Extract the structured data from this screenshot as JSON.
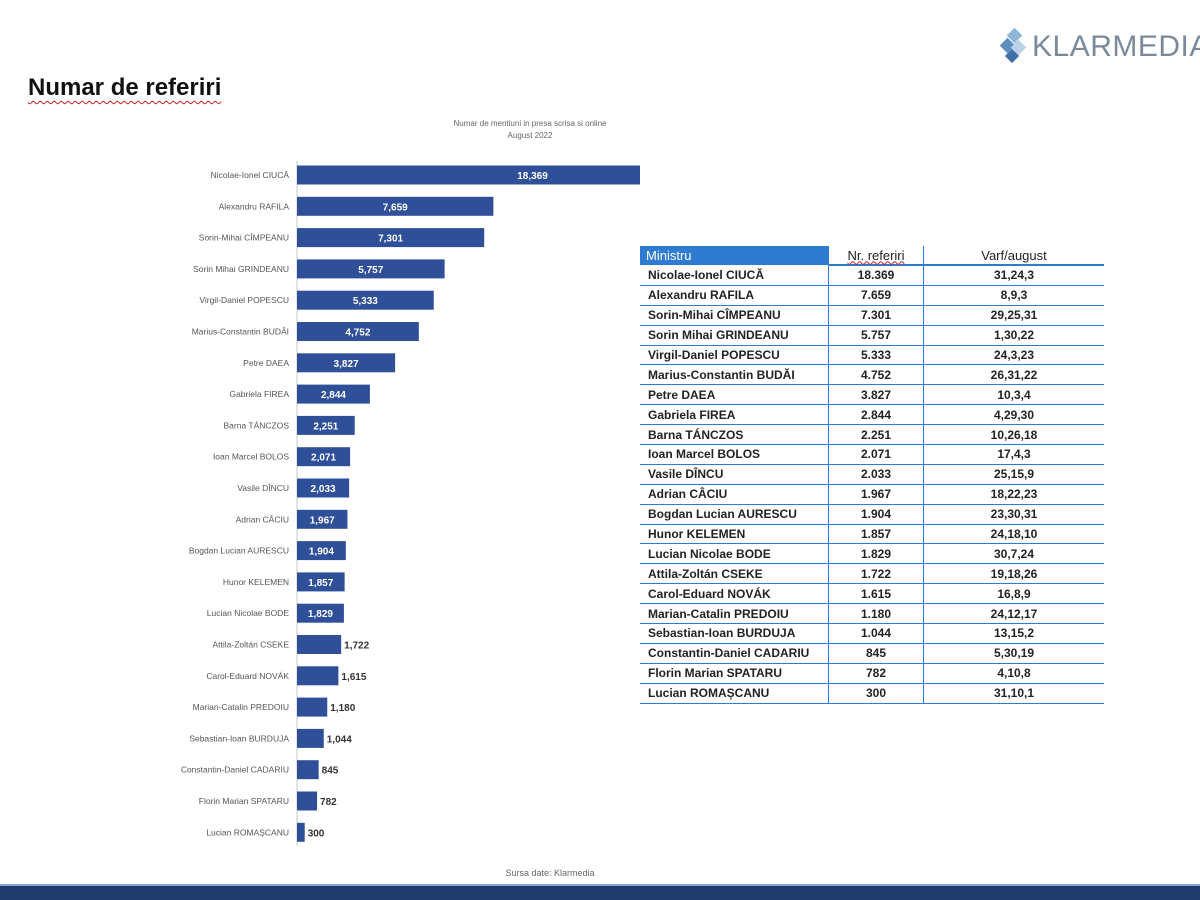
{
  "brand": {
    "name": "KLARMEDIA",
    "accent": "#2e7bd1",
    "bar_color": "#2f4f99",
    "band_color": "#1f3a6b"
  },
  "page": {
    "title": "Numar de referiri",
    "source": "Sursa date: Klarmedia"
  },
  "chart_data": {
    "type": "bar",
    "orientation": "horizontal",
    "title": "Numar de mentiuni in presa scrisa si online",
    "subtitle": "August 2022",
    "xlabel": "",
    "ylabel": "",
    "xlim": [
      0,
      18369
    ],
    "grid": false,
    "categories": [
      "Nicolae-Ionel CIUCĂ",
      "Alexandru RAFILA",
      "Sorin-Mihai CÎMPEANU",
      "Sorin Mihai GRINDEANU",
      "Virgil-Daniel POPESCU",
      "Marius-Constantin BUDĂI",
      "Petre DAEA",
      "Gabriela FIREA",
      "Barna TÁNCZOS",
      "Ioan Marcel BOLOS",
      "Vasile DÎNCU",
      "Adrian CÂCIU",
      "Bogdan Lucian AURESCU",
      "Hunor KELEMEN",
      "Lucian Nicolae BODE",
      "Attila-Zoltán CSEKE",
      "Carol-Eduard NOVÁK",
      "Marian-Catalin PREDOIU",
      "Sebastian-Ioan BURDUJA",
      "Constantin-Daniel CADARIU",
      "Florin Marian SPATARU",
      "Lucian ROMAȘCANU"
    ],
    "values": [
      18369,
      7659,
      7301,
      5757,
      5333,
      4752,
      3827,
      2844,
      2251,
      2071,
      2033,
      1967,
      1904,
      1857,
      1829,
      1722,
      1615,
      1180,
      1044,
      845,
      782,
      300
    ],
    "data_labels": [
      "18,369",
      "7,659",
      "7,301",
      "5,757",
      "5,333",
      "4,752",
      "3,827",
      "2,844",
      "2,251",
      "2,071",
      "2,033",
      "1,967",
      "1,904",
      "1,857",
      "1,829",
      "1,722",
      "1,615",
      "1,180",
      "1,044",
      "845",
      "782",
      "300"
    ]
  },
  "table": {
    "headers": [
      "Ministru",
      "Nr. referiri",
      "Varf/august"
    ],
    "rows": [
      [
        "Nicolae-Ionel CIUCĂ",
        "18.369",
        "31,24,3"
      ],
      [
        "Alexandru RAFILA",
        "7.659",
        "8,9,3"
      ],
      [
        "Sorin-Mihai CÎMPEANU",
        "7.301",
        "29,25,31"
      ],
      [
        "Sorin Mihai GRINDEANU",
        "5.757",
        "1,30,22"
      ],
      [
        "Virgil-Daniel POPESCU",
        "5.333",
        "24,3,23"
      ],
      [
        "Marius-Constantin BUDĂI",
        "4.752",
        "26,31,22"
      ],
      [
        "Petre DAEA",
        "3.827",
        "10,3,4"
      ],
      [
        "Gabriela FIREA",
        "2.844",
        "4,29,30"
      ],
      [
        "Barna TÁNCZOS",
        "2.251",
        "10,26,18"
      ],
      [
        "Ioan Marcel BOLOS",
        "2.071",
        "17,4,3"
      ],
      [
        "Vasile DÎNCU",
        "2.033",
        "25,15,9"
      ],
      [
        "Adrian CÂCIU",
        "1.967",
        "18,22,23"
      ],
      [
        "Bogdan Lucian AURESCU",
        "1.904",
        "23,30,31"
      ],
      [
        "Hunor KELEMEN",
        "1.857",
        "24,18,10"
      ],
      [
        "Lucian Nicolae BODE",
        "1.829",
        "30,7,24"
      ],
      [
        "Attila-Zoltán CSEKE",
        "1.722",
        "19,18,26"
      ],
      [
        "Carol-Eduard NOVÁK",
        "1.615",
        "16,8,9"
      ],
      [
        "Marian-Catalin PREDOIU",
        "1.180",
        "24,12,17"
      ],
      [
        "Sebastian-Ioan BURDUJA",
        "1.044",
        "13,15,2"
      ],
      [
        "Constantin-Daniel CADARIU",
        "845",
        "5,30,19"
      ],
      [
        "Florin Marian SPATARU",
        "782",
        "4,10,8"
      ],
      [
        "Lucian ROMAȘCANU",
        "300",
        "31,10,1"
      ]
    ]
  }
}
